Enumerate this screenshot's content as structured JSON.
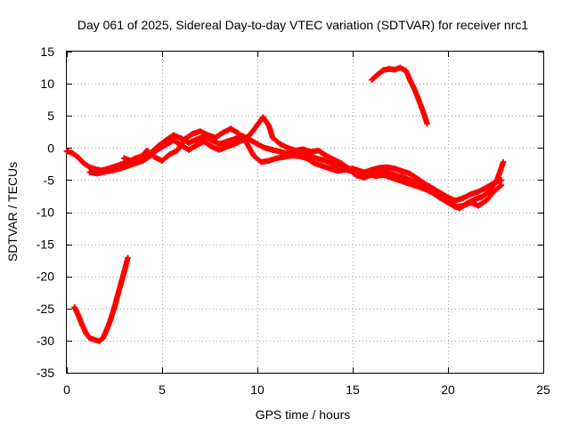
{
  "chart_data": {
    "type": "scatter",
    "title": "Day 061 of 2025, Sidereal Day-to-day VTEC variation (SDTVAR) for receiver nrc1",
    "xlabel": "GPS time / hours",
    "ylabel": "SDTVAR / TECUs",
    "xlim": [
      0,
      25
    ],
    "ylim": [
      -35,
      15
    ],
    "xticks": [
      0,
      5,
      10,
      15,
      20,
      25
    ],
    "yticks": [
      15,
      10,
      5,
      0,
      -5,
      -10,
      -15,
      -20,
      -25,
      -30,
      -35
    ],
    "grid": true,
    "marker": "plus",
    "series_color": "#ff0000",
    "series": [
      {
        "name": "arc-low-morning",
        "points": [
          [
            0.4,
            -24.8
          ],
          [
            0.6,
            -26.0
          ],
          [
            0.8,
            -27.5
          ],
          [
            1.0,
            -28.8
          ],
          [
            1.2,
            -29.6
          ],
          [
            1.5,
            -29.9
          ],
          [
            1.7,
            -30.1
          ],
          [
            1.9,
            -29.6
          ],
          [
            2.1,
            -28.3
          ],
          [
            2.3,
            -26.7
          ],
          [
            2.5,
            -24.8
          ],
          [
            2.7,
            -22.6
          ],
          [
            2.9,
            -20.5
          ],
          [
            3.1,
            -18.3
          ],
          [
            3.2,
            -17.1
          ]
        ]
      },
      {
        "name": "arc-main-a",
        "points": [
          [
            0,
            -0.5
          ],
          [
            0.3,
            -0.8
          ],
          [
            0.6,
            -1.5
          ],
          [
            0.9,
            -2.4
          ],
          [
            1.2,
            -3.0
          ],
          [
            1.5,
            -3.3
          ],
          [
            1.8,
            -3.5
          ],
          [
            2.1,
            -3.3
          ],
          [
            2.4,
            -3.0
          ],
          [
            2.8,
            -2.6
          ],
          [
            3.2,
            -2.2
          ],
          [
            3.6,
            -1.6
          ],
          [
            4.0,
            -1.2
          ],
          [
            4.4,
            -0.8
          ],
          [
            4.8,
            0.3
          ],
          [
            5.2,
            1.2
          ],
          [
            5.6,
            2.0
          ],
          [
            6.0,
            1.5
          ],
          [
            6.4,
            0.8
          ],
          [
            6.8,
            1.3
          ],
          [
            7.2,
            1.8
          ],
          [
            7.6,
            1.2
          ],
          [
            8.0,
            0.6
          ],
          [
            8.4,
            1.0
          ],
          [
            8.8,
            1.4
          ],
          [
            9.2,
            1.9
          ],
          [
            9.6,
            1.3
          ],
          [
            10.0,
            0.6
          ],
          [
            10.4,
            0.0
          ],
          [
            10.8,
            -0.3
          ],
          [
            11.2,
            -0.6
          ],
          [
            11.6,
            -0.9
          ],
          [
            12.0,
            -0.8
          ],
          [
            12.4,
            -1.0
          ],
          [
            12.8,
            -1.3
          ],
          [
            13.2,
            -1.7
          ],
          [
            13.6,
            -2.0
          ],
          [
            14.0,
            -2.6
          ],
          [
            14.4,
            -3.0
          ],
          [
            14.8,
            -3.5
          ],
          [
            15.2,
            -4.0
          ],
          [
            15.6,
            -3.8
          ],
          [
            16.0,
            -3.4
          ],
          [
            16.4,
            -3.1
          ],
          [
            16.8,
            -3.0
          ],
          [
            17.2,
            -3.2
          ],
          [
            17.6,
            -3.6
          ],
          [
            18.0,
            -4.0
          ],
          [
            18.4,
            -4.8
          ],
          [
            18.8,
            -5.6
          ],
          [
            19.2,
            -6.3
          ],
          [
            19.6,
            -7.0
          ],
          [
            20.0,
            -7.7
          ],
          [
            20.4,
            -8.2
          ],
          [
            20.8,
            -7.8
          ],
          [
            21.2,
            -7.2
          ],
          [
            21.6,
            -6.8
          ],
          [
            22.0,
            -6.2
          ],
          [
            22.4,
            -5.5
          ],
          [
            22.8,
            -5.0
          ]
        ]
      },
      {
        "name": "arc-main-b",
        "points": [
          [
            1.2,
            -3.8
          ],
          [
            1.6,
            -4.0
          ],
          [
            2.0,
            -3.7
          ],
          [
            2.4,
            -3.5
          ],
          [
            2.8,
            -3.2
          ],
          [
            3.2,
            -2.8
          ],
          [
            3.6,
            -2.4
          ],
          [
            4.0,
            -2.0
          ],
          [
            4.4,
            -1.2
          ],
          [
            4.8,
            -0.2
          ],
          [
            5.2,
            0.5
          ],
          [
            5.6,
            1.2
          ],
          [
            6.0,
            0.4
          ],
          [
            6.4,
            -0.3
          ],
          [
            6.8,
            0.4
          ],
          [
            7.2,
            1.0
          ],
          [
            7.6,
            0.2
          ],
          [
            8.0,
            -0.3
          ],
          [
            8.4,
            0.2
          ],
          [
            8.8,
            0.6
          ],
          [
            9.2,
            1.2
          ],
          [
            9.6,
            2.0
          ],
          [
            10.0,
            3.6
          ],
          [
            10.3,
            4.8
          ],
          [
            10.6,
            3.5
          ],
          [
            10.8,
            1.6
          ],
          [
            11.2,
            0.6
          ],
          [
            11.6,
            0.0
          ],
          [
            12.0,
            -0.4
          ],
          [
            12.4,
            -0.2
          ],
          [
            12.8,
            -0.6
          ],
          [
            13.2,
            -0.4
          ],
          [
            13.6,
            -1.2
          ],
          [
            14.0,
            -1.8
          ],
          [
            14.4,
            -2.4
          ],
          [
            14.8,
            -3.2
          ],
          [
            15.2,
            -4.3
          ],
          [
            15.6,
            -4.6
          ],
          [
            16.0,
            -4.2
          ],
          [
            16.4,
            -3.6
          ],
          [
            16.8,
            -3.8
          ],
          [
            17.2,
            -4.2
          ],
          [
            17.6,
            -4.5
          ],
          [
            18.0,
            -5.0
          ],
          [
            18.4,
            -5.6
          ],
          [
            18.8,
            -6.4
          ],
          [
            19.2,
            -7.0
          ],
          [
            19.6,
            -7.8
          ],
          [
            20.0,
            -8.5
          ],
          [
            20.4,
            -9.2
          ],
          [
            20.8,
            -9.0
          ],
          [
            21.2,
            -8.5
          ],
          [
            21.6,
            -9.0
          ],
          [
            22.0,
            -8.2
          ],
          [
            22.4,
            -6.8
          ],
          [
            22.8,
            -5.8
          ]
        ]
      },
      {
        "name": "arc-main-c",
        "points": [
          [
            3.0,
            -1.6
          ],
          [
            3.4,
            -2.0
          ],
          [
            3.8,
            -1.7
          ],
          [
            4.2,
            -0.4
          ],
          [
            4.6,
            -1.4
          ],
          [
            5.0,
            -2.0
          ],
          [
            5.4,
            -1.0
          ],
          [
            5.8,
            -0.4
          ],
          [
            6.2,
            1.4
          ],
          [
            6.6,
            2.2
          ],
          [
            7.0,
            2.6
          ],
          [
            7.4,
            2.0
          ],
          [
            7.8,
            1.6
          ],
          [
            8.2,
            2.4
          ],
          [
            8.6,
            3.0
          ],
          [
            9.0,
            2.3
          ],
          [
            9.4,
            1.0
          ],
          [
            9.8,
            -1.2
          ],
          [
            10.2,
            -2.2
          ],
          [
            10.6,
            -2.0
          ],
          [
            11.0,
            -1.6
          ],
          [
            11.4,
            -1.4
          ],
          [
            11.8,
            -1.2
          ],
          [
            12.2,
            -1.3
          ],
          [
            12.6,
            -1.6
          ],
          [
            13.0,
            -2.4
          ],
          [
            13.4,
            -2.8
          ],
          [
            13.8,
            -3.2
          ],
          [
            14.2,
            -3.6
          ],
          [
            14.6,
            -3.4
          ],
          [
            15.0,
            -3.2
          ],
          [
            15.4,
            -3.6
          ],
          [
            15.8,
            -4.0
          ],
          [
            16.2,
            -4.4
          ],
          [
            16.6,
            -4.2
          ],
          [
            17.0,
            -4.6
          ],
          [
            17.4,
            -5.0
          ],
          [
            17.8,
            -5.4
          ],
          [
            18.2,
            -5.8
          ],
          [
            18.6,
            -6.2
          ],
          [
            19.0,
            -6.6
          ],
          [
            19.4,
            -7.2
          ],
          [
            19.8,
            -8.0
          ],
          [
            20.2,
            -8.8
          ],
          [
            20.6,
            -9.4
          ],
          [
            21.0,
            -8.6
          ],
          [
            21.4,
            -8.0
          ],
          [
            21.8,
            -7.6
          ],
          [
            22.2,
            -6.6
          ],
          [
            22.6,
            -4.8
          ],
          [
            22.9,
            -2.2
          ]
        ]
      },
      {
        "name": "arc-high-afternoon",
        "points": [
          [
            16.0,
            10.6
          ],
          [
            16.3,
            11.4
          ],
          [
            16.6,
            12.1
          ],
          [
            16.9,
            12.3
          ],
          [
            17.2,
            12.2
          ],
          [
            17.5,
            12.5
          ],
          [
            17.8,
            12.0
          ],
          [
            18.0,
            10.6
          ],
          [
            18.2,
            9.4
          ],
          [
            18.4,
            8.0
          ],
          [
            18.6,
            6.4
          ],
          [
            18.8,
            4.8
          ],
          [
            18.9,
            3.8
          ]
        ]
      }
    ]
  }
}
